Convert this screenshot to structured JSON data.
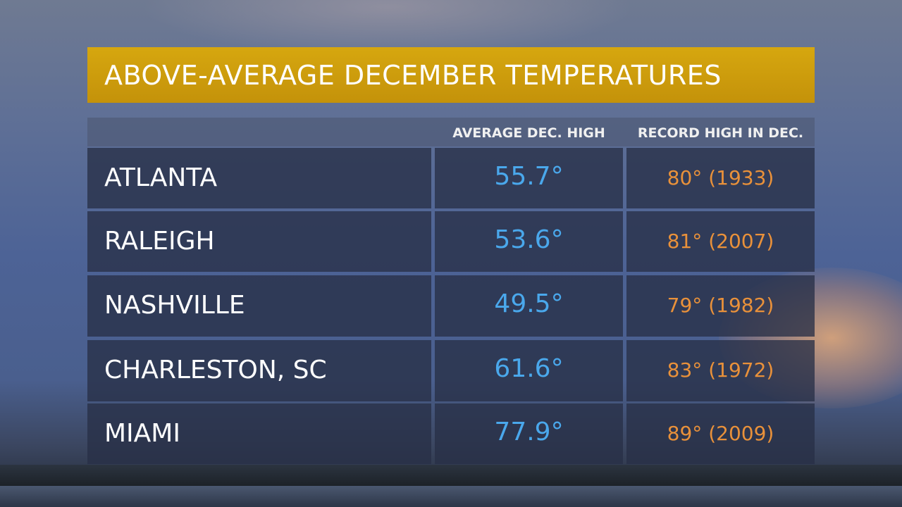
{
  "title": "ABOVE-AVERAGE DECEMBER TEMPERATURES",
  "colors": {
    "title_bar": "#c99d0d",
    "average": "#4aa8ec",
    "record": "#e9913a"
  },
  "chart_data": {
    "type": "table",
    "title": "ABOVE-AVERAGE DECEMBER TEMPERATURES",
    "columns": [
      "",
      "AVERAGE DEC. HIGH",
      "RECORD HIGH IN DEC."
    ],
    "rows": [
      {
        "city": "ATLANTA",
        "average": "55.7°",
        "record": "80° (1933)"
      },
      {
        "city": "RALEIGH",
        "average": "53.6°",
        "record": "81° (2007)"
      },
      {
        "city": "NASHVILLE",
        "average": "49.5°",
        "record": "79° (1982)"
      },
      {
        "city": "CHARLESTON, SC",
        "average": "61.6°",
        "record": "83° (1972)"
      },
      {
        "city": "MIAMI",
        "average": "77.9°",
        "record": "89° (2009)"
      }
    ]
  }
}
